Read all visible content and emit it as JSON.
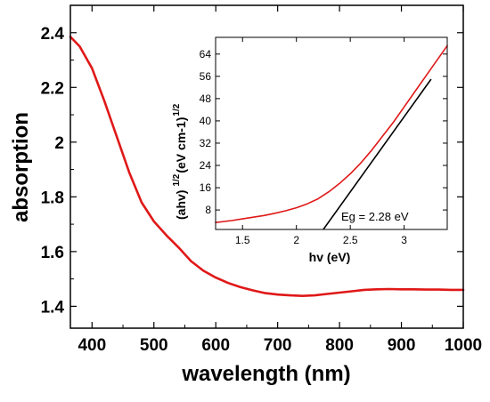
{
  "chart_data": [
    {
      "type": "line",
      "title": "",
      "xlabel": "wavelength (nm)",
      "ylabel": "absorption",
      "xlim": [
        365,
        1000
      ],
      "ylim": [
        1.32,
        2.5
      ],
      "xticks": [
        400,
        500,
        600,
        700,
        800,
        900,
        1000
      ],
      "yticks": [
        1.4,
        1.6,
        1.8,
        2,
        2.2,
        2.4
      ],
      "xtick_labels": [
        "400",
        "500",
        "600",
        "700",
        "800",
        "900",
        "1000"
      ],
      "ytick_labels": [
        "1.4",
        "1.6",
        "1.8",
        "2",
        "2.2",
        "2.4"
      ],
      "grid": false,
      "series": [
        {
          "color": "#e01818",
          "x": [
            365,
            380,
            400,
            420,
            440,
            460,
            480,
            500,
            520,
            540,
            560,
            580,
            600,
            620,
            640,
            660,
            680,
            700,
            720,
            740,
            760,
            780,
            800,
            820,
            840,
            860,
            880,
            900,
            920,
            940,
            960,
            980,
            1000
          ],
          "y": [
            2.385,
            2.35,
            2.27,
            2.15,
            2.02,
            1.89,
            1.78,
            1.71,
            1.66,
            1.615,
            1.565,
            1.53,
            1.505,
            1.485,
            1.47,
            1.458,
            1.448,
            1.443,
            1.44,
            1.438,
            1.44,
            1.445,
            1.45,
            1.455,
            1.46,
            1.462,
            1.463,
            1.462,
            1.462,
            1.461,
            1.461,
            1.46,
            1.46
          ]
        }
      ]
    },
    {
      "type": "line",
      "title": "",
      "xlabel": "hv (eV)",
      "ylabel": "(ahv) ^1/2 (eV cm-1) ^1/2",
      "ylabel_parts": [
        "(ahv)",
        "1/2",
        "(eV cm-1)",
        "1/2"
      ],
      "xlim": [
        1.25,
        3.4
      ],
      "ylim": [
        1,
        70
      ],
      "xticks": [
        1.5,
        2,
        2.5,
        3
      ],
      "yticks": [
        8,
        16,
        24,
        32,
        40,
        48,
        56,
        64
      ],
      "xtick_labels": [
        "1.5",
        "2",
        "2.5",
        "3"
      ],
      "ytick_labels": [
        "8",
        "16",
        "24",
        "32",
        "40",
        "48",
        "56",
        "64"
      ],
      "grid": false,
      "series": [
        {
          "color": "#e01818",
          "x": [
            1.25,
            1.4,
            1.5,
            1.6,
            1.7,
            1.8,
            1.9,
            2.0,
            2.1,
            2.2,
            2.3,
            2.4,
            2.5,
            2.6,
            2.7,
            2.8,
            2.9,
            3.0,
            3.1,
            3.2,
            3.3,
            3.4
          ],
          "y": [
            3.5,
            4.2,
            4.8,
            5.4,
            6.0,
            6.8,
            7.7,
            8.8,
            10.2,
            12.0,
            14.5,
            17.5,
            21.0,
            25.0,
            29.5,
            34.5,
            39.5,
            45.0,
            50.5,
            56.0,
            61.5,
            67.0
          ]
        }
      ],
      "fit_line": {
        "color": "#000000",
        "x": [
          2.25,
          3.25
        ],
        "y": [
          1,
          55
        ]
      },
      "annotation": "Eg = 2.28 eV"
    }
  ]
}
